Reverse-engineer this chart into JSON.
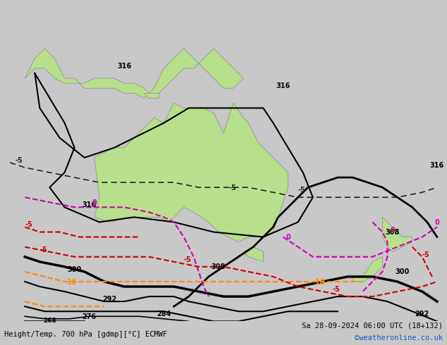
{
  "title_left": "Height/Temp. 700 hPa [gdmp][°C] ECMWF",
  "title_right": "Sa 28-09-2024 06:00 UTC (18+132)",
  "watermark": "©weatheronline.co.uk",
  "background_land": "#d4d4d4",
  "background_sea": "#e8e8e8",
  "australia_color": "#b8e08c",
  "newzealand_color": "#b8e08c",
  "indonesia_color": "#b8e08c",
  "contour_height_color": "#000000",
  "contour_temp_pos_color": "#000000",
  "contour_temp_neg_color": "#cc0000",
  "contour_temp_zero_color": "#cc00aa",
  "contour_temp_orange_color": "#ff8800",
  "label_color_black": "#000000",
  "label_color_red": "#cc0000",
  "label_color_magenta": "#cc00aa",
  "label_color_orange": "#ff8800",
  "figsize": [
    6.34,
    4.9
  ],
  "dpi": 100
}
